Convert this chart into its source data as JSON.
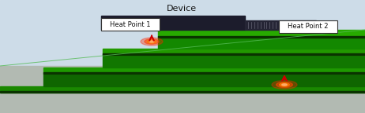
{
  "fig_width": 4.62,
  "fig_height": 1.44,
  "dpi": 100,
  "bg_sky_color": "#cddce8",
  "bg_gray_color": "#b2bab2",
  "device_dark": "#1c1c2c",
  "connector_dark": "#252535",
  "arrow_color": "#cc0000",
  "label_box_facecolor": "#ffffff",
  "label_border_color": "#333333",
  "green_line_color": "#55bb55",
  "title_text": "Device",
  "heat1_label": "Heat Point 1",
  "heat2_label": "Heat Point 2",
  "stair_top_colors": [
    "#1a8800",
    "#1e9900",
    "#22aa00",
    "#27bb00"
  ],
  "stair_front_colors": [
    "#0d5500",
    "#0f6600",
    "#117700",
    "#138800"
  ],
  "stair_side_colors": [
    "#0a4400",
    "#0c5500",
    "#0e6600",
    "#107700"
  ]
}
